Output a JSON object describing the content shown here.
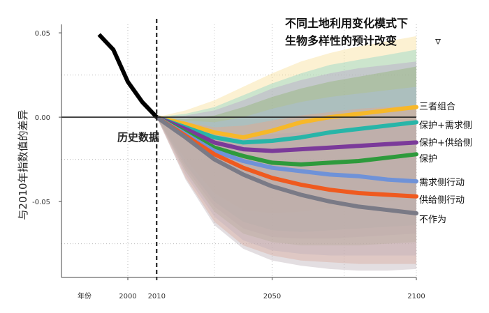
{
  "chart_data": {
    "type": "line",
    "title_lines": [
      "不同土地利用变化模式下",
      "生物多样性的预计改变"
    ],
    "title_marker": "▿",
    "ylabel": "与2010年指数值的差异",
    "xlabel": "年份",
    "x_ticks": [
      2000,
      2010,
      2050,
      2100
    ],
    "y_ticks": [
      {
        "value": 0.05,
        "label": "0.05"
      },
      {
        "value": 0.0,
        "label": "0.00"
      },
      {
        "value": -0.05,
        "label": "-0.05"
      }
    ],
    "xlim": [
      1977,
      2100
    ],
    "ylim": [
      -0.095,
      0.055
    ],
    "annotation": "历史数据",
    "divider_year": 2010,
    "historical": {
      "x": [
        1990,
        1995,
        2000,
        2005,
        2010
      ],
      "y": [
        0.049,
        0.04,
        0.021,
        0.009,
        0.0
      ]
    },
    "series": [
      {
        "name": "三者组合",
        "color": "#f7b829",
        "x": [
          2010,
          2020,
          2030,
          2040,
          2050,
          2060,
          2070,
          2080,
          2090,
          2100
        ],
        "y": [
          0.0,
          -0.004,
          -0.009,
          -0.012,
          -0.008,
          -0.003,
          0.0,
          0.002,
          0.004,
          0.006
        ],
        "band_low": [
          0.0,
          -0.025,
          -0.045,
          -0.055,
          -0.057,
          -0.056,
          -0.054,
          -0.052,
          -0.05,
          -0.048
        ],
        "band_high": [
          0.0,
          0.004,
          0.01,
          0.018,
          0.026,
          0.033,
          0.038,
          0.042,
          0.045,
          0.048
        ],
        "band_color": "#f7d98a"
      },
      {
        "name": "保护+需求侧",
        "color": "#28b5a8",
        "x": [
          2010,
          2020,
          2030,
          2040,
          2050,
          2060,
          2070,
          2080,
          2090,
          2100
        ],
        "y": [
          0.0,
          -0.006,
          -0.012,
          -0.015,
          -0.014,
          -0.012,
          -0.009,
          -0.007,
          -0.005,
          -0.003
        ],
        "band_low": [
          0.0,
          -0.028,
          -0.05,
          -0.062,
          -0.067,
          -0.068,
          -0.067,
          -0.066,
          -0.065,
          -0.064
        ],
        "band_high": [
          0.0,
          0.002,
          0.006,
          0.013,
          0.02,
          0.026,
          0.031,
          0.034,
          0.037,
          0.04
        ],
        "band_color": "#7fd3c6"
      },
      {
        "name": "保护+供给侧",
        "color": "#7b3a9a",
        "x": [
          2010,
          2020,
          2030,
          2040,
          2050,
          2060,
          2070,
          2080,
          2090,
          2100
        ],
        "y": [
          0.0,
          -0.007,
          -0.015,
          -0.019,
          -0.02,
          -0.019,
          -0.018,
          -0.017,
          -0.016,
          -0.015
        ],
        "band_low": [
          0.0,
          -0.03,
          -0.053,
          -0.066,
          -0.071,
          -0.072,
          -0.072,
          -0.071,
          -0.07,
          -0.069
        ],
        "band_high": [
          0.0,
          0.001,
          0.004,
          0.01,
          0.017,
          0.022,
          0.026,
          0.029,
          0.031,
          0.033
        ],
        "band_color": "#b79ac8"
      },
      {
        "name": "保护",
        "color": "#2e9a3c",
        "x": [
          2010,
          2020,
          2030,
          2040,
          2050,
          2060,
          2070,
          2080,
          2090,
          2100
        ],
        "y": [
          0.0,
          -0.009,
          -0.018,
          -0.023,
          -0.027,
          -0.028,
          -0.027,
          -0.026,
          -0.024,
          -0.022
        ],
        "band_low": [
          0.0,
          -0.032,
          -0.056,
          -0.069,
          -0.074,
          -0.076,
          -0.076,
          -0.076,
          -0.075,
          -0.074
        ],
        "band_high": [
          0.0,
          -0.001,
          0.001,
          0.006,
          0.012,
          0.017,
          0.021,
          0.024,
          0.027,
          0.03
        ],
        "band_color": "#8cb36a"
      },
      {
        "name": "需求侧行动",
        "color": "#6f92d8",
        "x": [
          2010,
          2020,
          2030,
          2040,
          2050,
          2060,
          2070,
          2080,
          2090,
          2100
        ],
        "y": [
          0.0,
          -0.01,
          -0.02,
          -0.026,
          -0.03,
          -0.032,
          -0.034,
          -0.035,
          -0.037,
          -0.038
        ],
        "band_low": [
          0.0,
          -0.034,
          -0.059,
          -0.073,
          -0.079,
          -0.081,
          -0.082,
          -0.082,
          -0.082,
          -0.082
        ],
        "band_high": [
          0.0,
          -0.002,
          -0.003,
          0.0,
          0.005,
          0.009,
          0.012,
          0.014,
          0.016,
          0.018
        ],
        "band_color": "#a9bde6"
      },
      {
        "name": "供给侧行动",
        "color": "#ef5a1f",
        "x": [
          2010,
          2020,
          2030,
          2040,
          2050,
          2060,
          2070,
          2080,
          2090,
          2100
        ],
        "y": [
          0.0,
          -0.011,
          -0.022,
          -0.03,
          -0.036,
          -0.04,
          -0.043,
          -0.045,
          -0.046,
          -0.047
        ],
        "band_low": [
          0.0,
          -0.036,
          -0.062,
          -0.076,
          -0.082,
          -0.085,
          -0.086,
          -0.087,
          -0.087,
          -0.087
        ],
        "band_high": [
          0.0,
          -0.003,
          -0.006,
          -0.005,
          -0.002,
          0.001,
          0.003,
          0.005,
          0.006,
          0.007
        ],
        "band_color": "#f0a483"
      },
      {
        "name": "不作为",
        "color": "#7a7a86",
        "x": [
          2010,
          2020,
          2030,
          2040,
          2050,
          2060,
          2070,
          2080,
          2090,
          2100
        ],
        "y": [
          0.0,
          -0.012,
          -0.025,
          -0.034,
          -0.041,
          -0.046,
          -0.05,
          -0.053,
          -0.055,
          -0.057
        ],
        "band_low": [
          0.0,
          -0.037,
          -0.064,
          -0.078,
          -0.085,
          -0.088,
          -0.09,
          -0.091,
          -0.091,
          -0.09
        ],
        "band_high": [
          0.0,
          -0.004,
          -0.009,
          -0.011,
          -0.01,
          -0.009,
          -0.008,
          -0.007,
          -0.006,
          -0.005
        ],
        "band_color": "#b6a8b0"
      }
    ],
    "grid": "dotted",
    "legend": "right, inline labels"
  }
}
